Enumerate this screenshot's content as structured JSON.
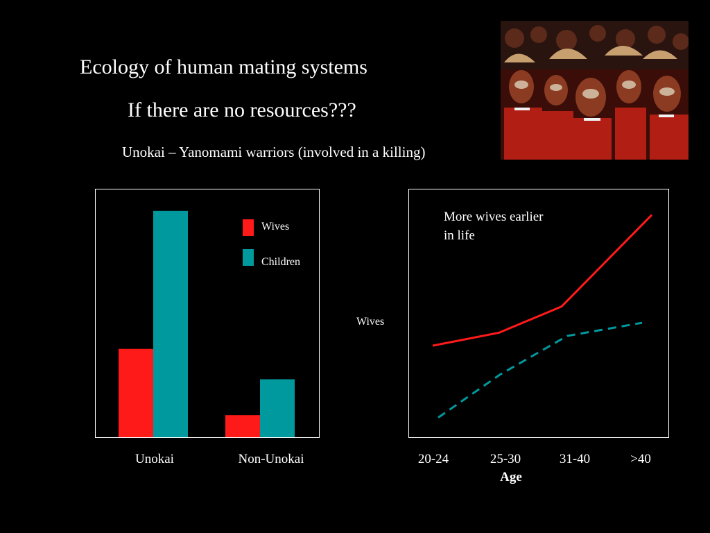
{
  "slide": {
    "title": "Ecology of human mating systems",
    "subtitle": "If there are no resources???",
    "caption": "Unokai – Yanomami warriors (involved in a killing)"
  },
  "photo": {
    "icon": "crowd-of-warriors-photo"
  },
  "colors": {
    "wives": "#ff1a1a",
    "children": "#00999e",
    "frame": "#ffffff",
    "background": "#000000"
  },
  "chart_data": [
    {
      "type": "bar",
      "categories": [
        "Unokai",
        "Non-Unokai"
      ],
      "series": [
        {
          "name": "Wives",
          "values": [
            1.6,
            0.4
          ]
        },
        {
          "name": "Children",
          "values": [
            4.1,
            1.05
          ]
        }
      ],
      "ylim": [
        0,
        4.5
      ],
      "legend": "top-right",
      "xlabel": "",
      "ylabel": "",
      "title": ""
    },
    {
      "type": "line",
      "categories": [
        "20-24",
        "25-30",
        "31-40",
        ">40"
      ],
      "series": [
        {
          "values": [
            1.0,
            1.2,
            1.6,
            3.0
          ],
          "style": "solid",
          "color": "#ff1a1a"
        },
        {
          "values": [
            -0.1,
            0.55,
            1.15,
            1.35
          ],
          "style": "dashed",
          "color": "#00999e"
        }
      ],
      "ylim": [
        -0.4,
        3.4
      ],
      "xlabel": "Age",
      "ylabel": "Wives",
      "annotation": [
        "More wives earlier",
        "in life"
      ],
      "title": ""
    }
  ]
}
